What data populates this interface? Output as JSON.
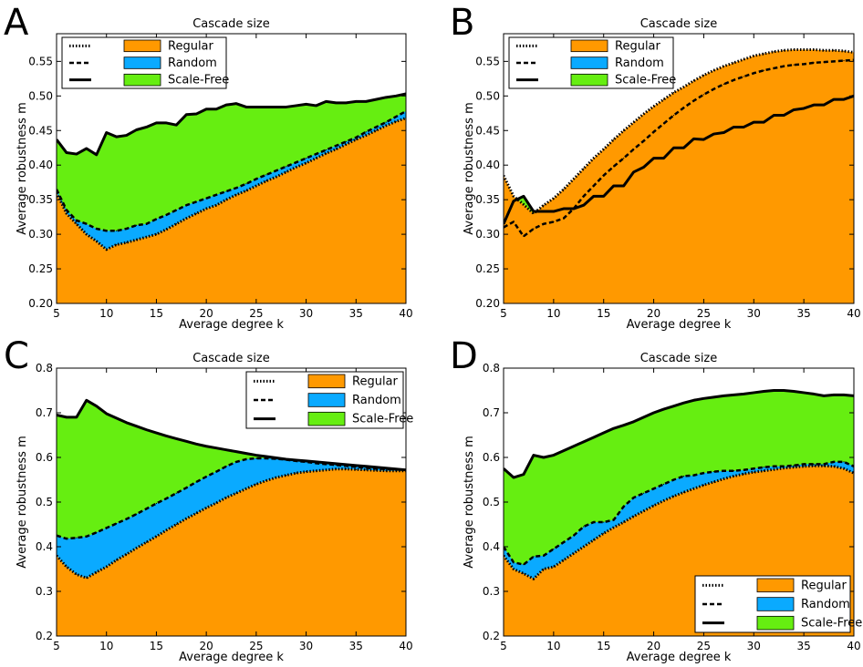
{
  "figure": {
    "panels": [
      "A",
      "B",
      "C",
      "D"
    ]
  },
  "chart_data": [
    {
      "panel": "A",
      "type": "area",
      "title": "Cascade size",
      "xlabel": "Average degree k",
      "ylabel": "Average robustness m",
      "xlim": [
        5,
        40
      ],
      "ylim": [
        0.2,
        0.59
      ],
      "xticks": [
        5,
        10,
        15,
        20,
        25,
        30,
        35,
        40
      ],
      "yticks": [
        0.2,
        0.25,
        0.3,
        0.35,
        0.4,
        0.45,
        0.5,
        0.55
      ],
      "ytick_labels": [
        "0.20",
        "0.25",
        "0.30",
        "0.35",
        "0.40",
        "0.45",
        "0.50",
        "0.55"
      ],
      "legend_position": "upper-left",
      "x": [
        5,
        6,
        7,
        8,
        9,
        10,
        11,
        12,
        13,
        14,
        15,
        16,
        17,
        18,
        19,
        20,
        21,
        22,
        23,
        24,
        25,
        26,
        27,
        28,
        29,
        30,
        31,
        32,
        33,
        34,
        35,
        36,
        37,
        38,
        39,
        40
      ],
      "series": [
        {
          "name": "Regular",
          "style": "dotted",
          "color": "#ff9900",
          "values": [
            0.36,
            0.33,
            0.315,
            0.3,
            0.29,
            0.278,
            0.285,
            0.288,
            0.292,
            0.296,
            0.3,
            0.307,
            0.315,
            0.323,
            0.33,
            0.337,
            0.342,
            0.35,
            0.357,
            0.363,
            0.37,
            0.377,
            0.383,
            0.39,
            0.397,
            0.403,
            0.41,
            0.417,
            0.423,
            0.43,
            0.437,
            0.443,
            0.45,
            0.457,
            0.463,
            0.468
          ]
        },
        {
          "name": "Random",
          "style": "dashed",
          "color": "#0aaaff",
          "values": [
            0.365,
            0.335,
            0.32,
            0.315,
            0.308,
            0.305,
            0.305,
            0.308,
            0.313,
            0.315,
            0.322,
            0.328,
            0.335,
            0.342,
            0.347,
            0.352,
            0.357,
            0.362,
            0.367,
            0.373,
            0.38,
            0.386,
            0.392,
            0.398,
            0.404,
            0.41,
            0.416,
            0.422,
            0.428,
            0.434,
            0.44,
            0.448,
            0.455,
            0.462,
            0.47,
            0.478
          ]
        },
        {
          "name": "Scale-Free",
          "style": "solid",
          "color": "#66ee11",
          "values": [
            0.437,
            0.418,
            0.416,
            0.424,
            0.415,
            0.447,
            0.441,
            0.443,
            0.451,
            0.455,
            0.461,
            0.461,
            0.458,
            0.473,
            0.474,
            0.481,
            0.481,
            0.487,
            0.489,
            0.484,
            0.484,
            0.484,
            0.484,
            0.484,
            0.486,
            0.488,
            0.486,
            0.492,
            0.49,
            0.49,
            0.492,
            0.492,
            0.495,
            0.498,
            0.5,
            0.503
          ]
        }
      ]
    },
    {
      "panel": "B",
      "type": "area",
      "title": "Cascade size",
      "xlabel": "Average degree k",
      "ylabel": "Average robustness m",
      "xlim": [
        5,
        40
      ],
      "ylim": [
        0.2,
        0.59
      ],
      "xticks": [
        5,
        10,
        15,
        20,
        25,
        30,
        35,
        40
      ],
      "yticks": [
        0.2,
        0.25,
        0.3,
        0.35,
        0.4,
        0.45,
        0.5,
        0.55
      ],
      "ytick_labels": [
        "0.20",
        "0.25",
        "0.30",
        "0.35",
        "0.40",
        "0.45",
        "0.50",
        "0.55"
      ],
      "legend_position": "upper-left",
      "x": [
        5,
        6,
        7,
        8,
        9,
        10,
        11,
        12,
        13,
        14,
        15,
        16,
        17,
        18,
        19,
        20,
        21,
        22,
        23,
        24,
        25,
        26,
        27,
        28,
        29,
        30,
        31,
        32,
        33,
        34,
        35,
        36,
        37,
        38,
        39,
        40
      ],
      "series": [
        {
          "name": "Regular",
          "style": "dotted",
          "color": "#ff9900",
          "values": [
            0.385,
            0.355,
            0.343,
            0.33,
            0.342,
            0.352,
            0.365,
            0.38,
            0.395,
            0.41,
            0.423,
            0.437,
            0.45,
            0.462,
            0.474,
            0.485,
            0.495,
            0.505,
            0.513,
            0.522,
            0.53,
            0.537,
            0.543,
            0.548,
            0.553,
            0.558,
            0.561,
            0.564,
            0.566,
            0.567,
            0.567,
            0.567,
            0.566,
            0.566,
            0.565,
            0.563
          ]
        },
        {
          "name": "Random",
          "style": "dashed",
          "color": "#0aaaff",
          "values": [
            0.31,
            0.318,
            0.297,
            0.308,
            0.315,
            0.318,
            0.323,
            0.337,
            0.355,
            0.37,
            0.385,
            0.398,
            0.41,
            0.423,
            0.435,
            0.448,
            0.46,
            0.472,
            0.483,
            0.493,
            0.502,
            0.51,
            0.517,
            0.523,
            0.528,
            0.533,
            0.537,
            0.54,
            0.543,
            0.545,
            0.546,
            0.548,
            0.549,
            0.55,
            0.551,
            0.552
          ]
        },
        {
          "name": "Scale-Free",
          "style": "solid",
          "color": "#66ee11",
          "values": [
            0.315,
            0.348,
            0.355,
            0.333,
            0.333,
            0.333,
            0.337,
            0.337,
            0.342,
            0.355,
            0.355,
            0.37,
            0.37,
            0.39,
            0.397,
            0.41,
            0.41,
            0.425,
            0.425,
            0.438,
            0.437,
            0.445,
            0.447,
            0.455,
            0.455,
            0.462,
            0.462,
            0.472,
            0.472,
            0.48,
            0.482,
            0.487,
            0.487,
            0.495,
            0.495,
            0.5
          ]
        }
      ]
    },
    {
      "panel": "C",
      "type": "area",
      "title": "Cascade size",
      "xlabel": "Average degree k",
      "ylabel": "Average robustness m",
      "xlim": [
        5,
        40
      ],
      "ylim": [
        0.2,
        0.8
      ],
      "xticks": [
        5,
        10,
        15,
        20,
        25,
        30,
        35,
        40
      ],
      "yticks": [
        0.2,
        0.3,
        0.4,
        0.5,
        0.6,
        0.7,
        0.8
      ],
      "ytick_labels": [
        "0.2",
        "0.3",
        "0.4",
        "0.5",
        "0.6",
        "0.7",
        "0.8"
      ],
      "legend_position": "upper-right",
      "x": [
        5,
        6,
        7,
        8,
        9,
        10,
        11,
        12,
        13,
        14,
        15,
        16,
        17,
        18,
        19,
        20,
        21,
        22,
        23,
        24,
        25,
        26,
        27,
        28,
        29,
        30,
        31,
        32,
        33,
        34,
        35,
        36,
        37,
        38,
        39,
        40
      ],
      "series": [
        {
          "name": "Regular",
          "style": "dotted",
          "color": "#ff9900",
          "values": [
            0.38,
            0.355,
            0.338,
            0.33,
            0.343,
            0.355,
            0.37,
            0.383,
            0.397,
            0.41,
            0.423,
            0.437,
            0.45,
            0.463,
            0.475,
            0.487,
            0.498,
            0.51,
            0.52,
            0.53,
            0.54,
            0.548,
            0.555,
            0.56,
            0.565,
            0.568,
            0.57,
            0.572,
            0.574,
            0.574,
            0.573,
            0.572,
            0.571,
            0.57,
            0.57,
            0.57
          ]
        },
        {
          "name": "Random",
          "style": "dashed",
          "color": "#0aaaff",
          "values": [
            0.425,
            0.418,
            0.42,
            0.423,
            0.432,
            0.442,
            0.452,
            0.462,
            0.473,
            0.485,
            0.497,
            0.508,
            0.52,
            0.532,
            0.545,
            0.557,
            0.568,
            0.58,
            0.59,
            0.596,
            0.598,
            0.598,
            0.597,
            0.595,
            0.592,
            0.59,
            0.587,
            0.585,
            0.583,
            0.581,
            0.579,
            0.577,
            0.575,
            0.574,
            0.573,
            0.572
          ]
        },
        {
          "name": "Scale-Free",
          "style": "solid",
          "color": "#66ee11",
          "values": [
            0.695,
            0.69,
            0.69,
            0.728,
            0.715,
            0.698,
            0.688,
            0.678,
            0.67,
            0.662,
            0.655,
            0.648,
            0.642,
            0.636,
            0.63,
            0.625,
            0.621,
            0.617,
            0.613,
            0.609,
            0.605,
            0.602,
            0.599,
            0.596,
            0.594,
            0.592,
            0.59,
            0.588,
            0.586,
            0.584,
            0.582,
            0.58,
            0.578,
            0.576,
            0.574,
            0.572
          ]
        }
      ]
    },
    {
      "panel": "D",
      "type": "area",
      "title": "Cascade size",
      "xlabel": "Average degree k",
      "ylabel": "Average robustness m",
      "xlim": [
        5,
        40
      ],
      "ylim": [
        0.2,
        0.8
      ],
      "xticks": [
        5,
        10,
        15,
        20,
        25,
        30,
        35,
        40
      ],
      "yticks": [
        0.2,
        0.3,
        0.4,
        0.5,
        0.6,
        0.7,
        0.8
      ],
      "ytick_labels": [
        "0.2",
        "0.3",
        "0.4",
        "0.5",
        "0.6",
        "0.7",
        "0.8"
      ],
      "legend_position": "lower-right",
      "x": [
        5,
        6,
        7,
        8,
        9,
        10,
        11,
        12,
        13,
        14,
        15,
        16,
        17,
        18,
        19,
        20,
        21,
        22,
        23,
        24,
        25,
        26,
        27,
        28,
        29,
        30,
        31,
        32,
        33,
        34,
        35,
        36,
        37,
        38,
        39,
        40
      ],
      "series": [
        {
          "name": "Regular",
          "style": "dotted",
          "color": "#ff9900",
          "values": [
            0.38,
            0.35,
            0.34,
            0.328,
            0.35,
            0.355,
            0.37,
            0.385,
            0.4,
            0.415,
            0.43,
            0.443,
            0.455,
            0.468,
            0.48,
            0.492,
            0.503,
            0.513,
            0.522,
            0.53,
            0.538,
            0.545,
            0.552,
            0.558,
            0.563,
            0.567,
            0.57,
            0.573,
            0.576,
            0.578,
            0.58,
            0.581,
            0.581,
            0.58,
            0.575,
            0.565
          ]
        },
        {
          "name": "Random",
          "style": "dashed",
          "color": "#0aaaff",
          "values": [
            0.4,
            0.365,
            0.36,
            0.378,
            0.38,
            0.395,
            0.41,
            0.425,
            0.445,
            0.455,
            0.455,
            0.46,
            0.49,
            0.51,
            0.52,
            0.53,
            0.54,
            0.55,
            0.558,
            0.56,
            0.565,
            0.568,
            0.57,
            0.57,
            0.572,
            0.575,
            0.578,
            0.58,
            0.58,
            0.582,
            0.585,
            0.585,
            0.585,
            0.59,
            0.59,
            0.58
          ]
        },
        {
          "name": "Scale-Free",
          "style": "solid",
          "color": "#66ee11",
          "values": [
            0.575,
            0.555,
            0.562,
            0.605,
            0.6,
            0.605,
            0.615,
            0.625,
            0.635,
            0.645,
            0.655,
            0.665,
            0.672,
            0.68,
            0.69,
            0.7,
            0.708,
            0.715,
            0.722,
            0.728,
            0.732,
            0.735,
            0.738,
            0.74,
            0.742,
            0.745,
            0.748,
            0.75,
            0.75,
            0.748,
            0.745,
            0.742,
            0.738,
            0.74,
            0.74,
            0.738
          ]
        }
      ]
    }
  ],
  "colors": {
    "regular": "#ff9900",
    "random": "#0aaaff",
    "scale_free": "#66ee11",
    "frame": "#000000"
  }
}
